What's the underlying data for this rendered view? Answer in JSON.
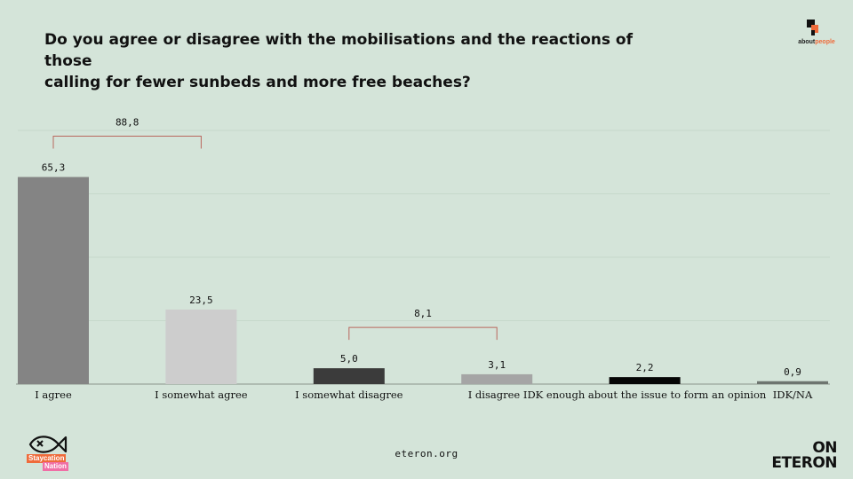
{
  "title": "Do you agree or disagree with the mobilisations and the reactions of those\ncalling for fewer sunbeds and more free beaches?",
  "brand_top": {
    "part1": "about",
    "part2": "people"
  },
  "footer": {
    "url": "eteron.org"
  },
  "brand_left": {
    "line1": "Staycation",
    "line2": "Nation"
  },
  "brand_right": {
    "line1": "ON",
    "line2": "ETERON"
  },
  "chart_data": {
    "type": "bar",
    "title": "Do you agree or disagree with the mobilisations and the reactions of those calling for fewer sunbeds and more free beaches?",
    "categories": [
      "I agree",
      "I somewhat agree",
      "I somewhat disagree",
      "I disagree",
      "IDK enough about the issue to form an opinion",
      "IDK/NA"
    ],
    "values": [
      65.3,
      23.5,
      5.0,
      3.1,
      2.2,
      0.9
    ],
    "value_labels": [
      "65,3",
      "23,5",
      "5,0",
      "3,1",
      "2,2",
      "0,9"
    ],
    "bar_colors": [
      "#848484",
      "#cdcdcd",
      "#3b3b3b",
      "#a5a5a5",
      "#050505",
      "#6e7570"
    ],
    "ylim": [
      0,
      80
    ],
    "grid": true,
    "brackets": [
      {
        "from": 0,
        "to": 1,
        "label": "88,8"
      },
      {
        "from": 2,
        "to": 3,
        "label": "8,1"
      }
    ],
    "bracket_color": "#b9675d"
  }
}
